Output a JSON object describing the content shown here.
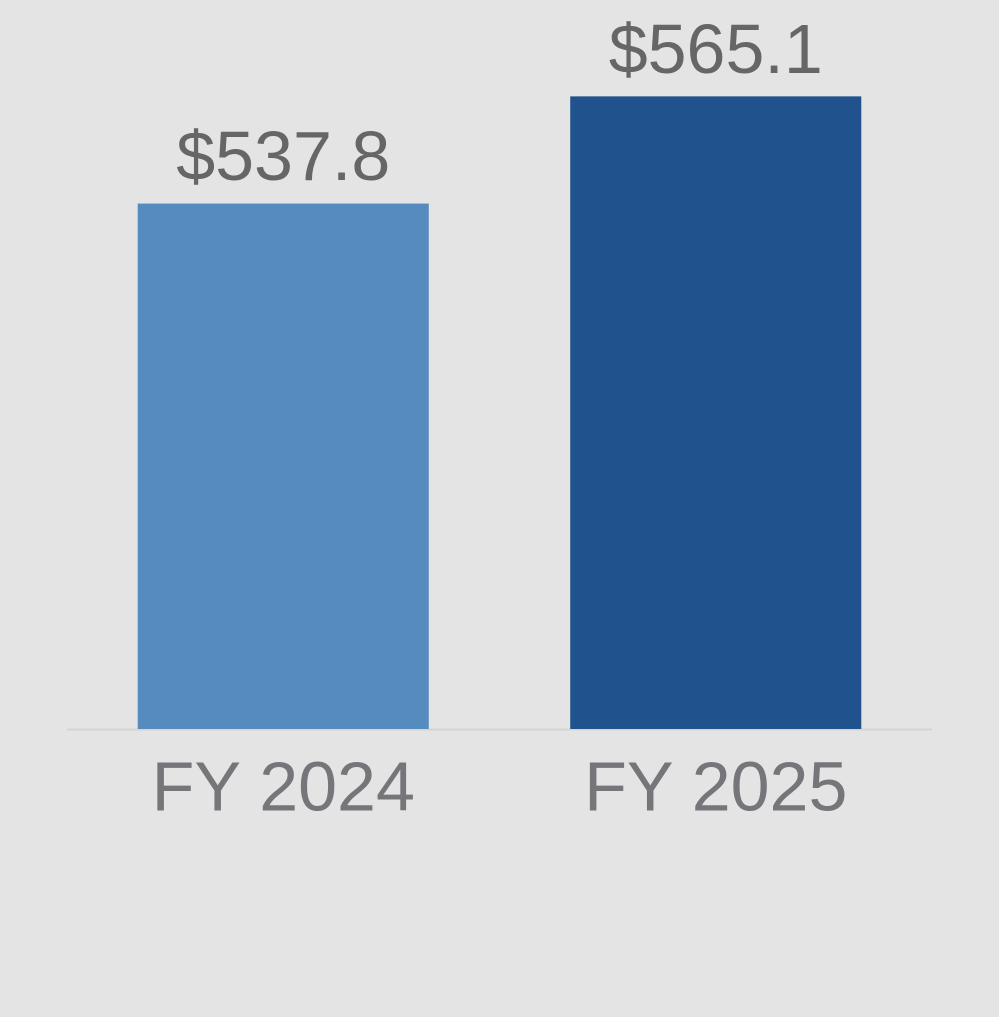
{
  "chart_data": {
    "type": "bar",
    "categories": [
      "FY 2024",
      "FY 2025"
    ],
    "values": [
      537.8,
      565.1
    ],
    "value_labels": [
      "$537.8",
      "$565.1"
    ],
    "colors": [
      "#558bbe",
      "#20528d"
    ],
    "ylim": [
      404,
      582
    ]
  }
}
